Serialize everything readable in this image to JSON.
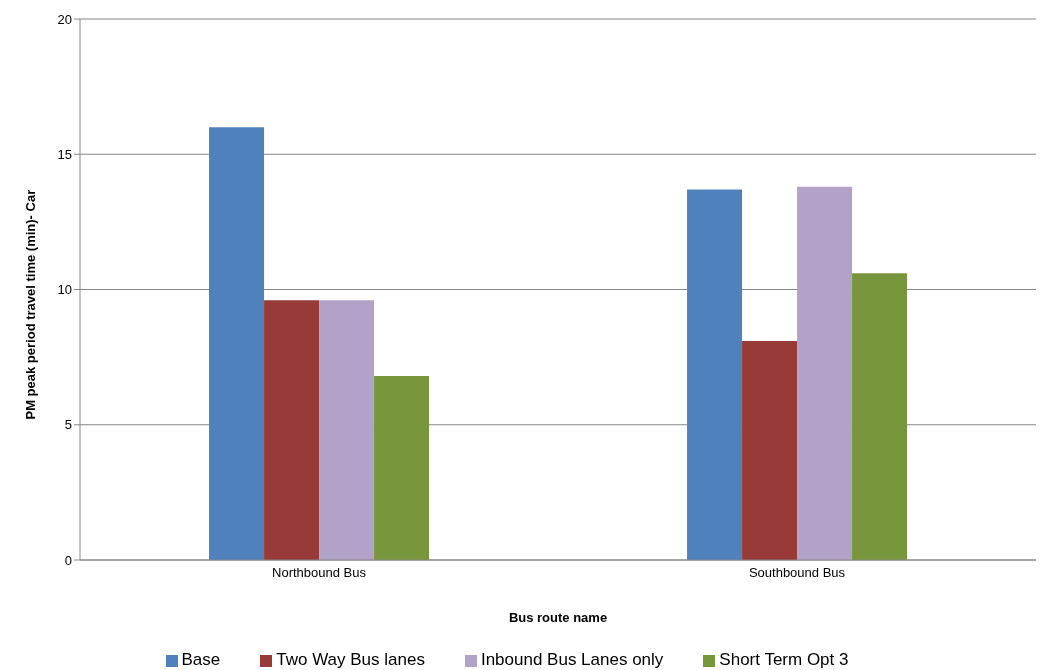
{
  "chart_data": {
    "type": "bar",
    "xlabel": "Bus route name",
    "ylabel": "PM peak period travel time (min)- Car",
    "categories": [
      "Northbound Bus",
      "Southbound Bus"
    ],
    "series": [
      {
        "name": "Base",
        "color": "#4f81bd",
        "values": [
          16.0,
          13.7
        ]
      },
      {
        "name": "Two Way Bus lanes",
        "color": "#983a38",
        "values": [
          9.6,
          8.1
        ]
      },
      {
        "name": "Inbound Bus Lanes only",
        "color": "#b3a2c7",
        "values": [
          9.6,
          13.8
        ]
      },
      {
        "name": "Short Term Opt 3",
        "color": "#77963c",
        "values": [
          6.8,
          10.6
        ]
      }
    ],
    "ylim": [
      0,
      20
    ],
    "yticks": [
      0,
      5,
      10,
      15,
      20
    ],
    "grid": "y",
    "legend": "bottom"
  }
}
